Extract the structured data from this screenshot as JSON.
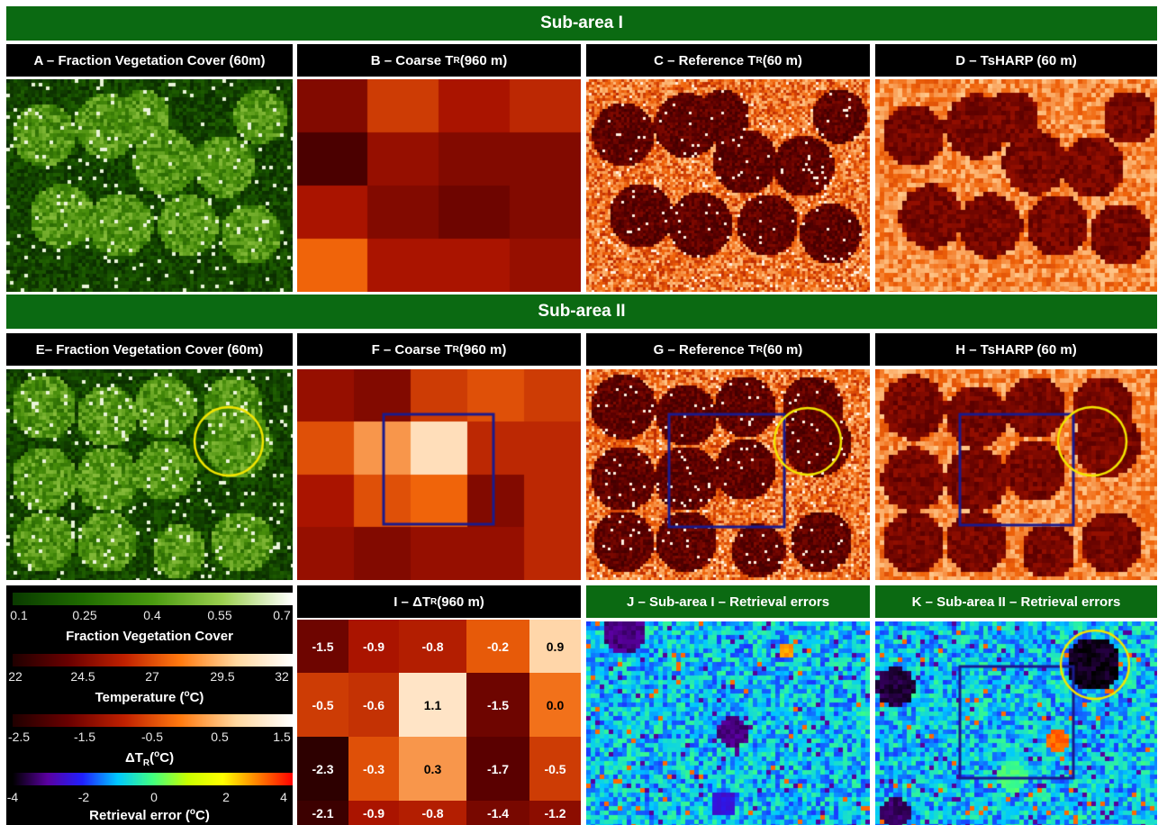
{
  "bands": {
    "sub_area_1": "Sub-area I",
    "sub_area_2": "Sub-area II"
  },
  "titles": {
    "A": "A – Fraction Vegetation Cover (60m)",
    "B_pre": "B – Coarse T",
    "B_sub": "R",
    "B_post": " (960 m)",
    "C_pre": "C – Reference T",
    "C_sub": "R",
    "C_post": " (60 m)",
    "D": "D – TsHARP (60 m)",
    "E": "E– Fraction Vegetation Cover (60m)",
    "F_pre": "F – Coarse T",
    "F_sub": "R",
    "F_post": " (960 m)",
    "G_pre": "G – Reference T",
    "G_sub": "R",
    "G_post": " (60 m)",
    "H": "H – TsHARP (60 m)",
    "I_pre": "I – ΔT",
    "I_sub": "R",
    "I_post": " (960 m)",
    "J": "J – Sub-area I – Retrieval errors",
    "K": "K – Sub-area II – Retrieval errors"
  },
  "legend": {
    "fvc": {
      "ticks": [
        "0.1",
        "0.25",
        "0.4",
        "0.55",
        "0.7"
      ],
      "label": "Fraction Vegetation Cover"
    },
    "temp": {
      "ticks": [
        "22",
        "24.5",
        "27",
        "29.5",
        "32"
      ],
      "label": "Temperature (°C)"
    },
    "dtr": {
      "ticks": [
        "-2.5",
        "-1.5",
        "-0.5",
        "0.5",
        "1.5"
      ],
      "label": "ΔTR(°C)"
    },
    "err": {
      "ticks": [
        "-4",
        "-2",
        "0",
        "2",
        "4"
      ],
      "label": "Retrieval error (°C)"
    }
  },
  "delta_grid": {
    "rows": [
      [
        "-1.5",
        "-0.9",
        "-0.8",
        "-0.2",
        "0.9"
      ],
      [
        "-0.5",
        "-0.6",
        "1.1",
        "-1.5",
        "0.0"
      ],
      [
        "-2.3",
        "-0.3",
        "0.3",
        "-1.7",
        "-0.5"
      ],
      [
        "-2.1",
        "-0.9",
        "-0.8",
        "-1.4",
        "-1.2"
      ]
    ]
  },
  "colors": {
    "band_green": "#0b6a12",
    "highlight_circle": "#f2e600",
    "highlight_box": "#1a1a8c"
  }
}
